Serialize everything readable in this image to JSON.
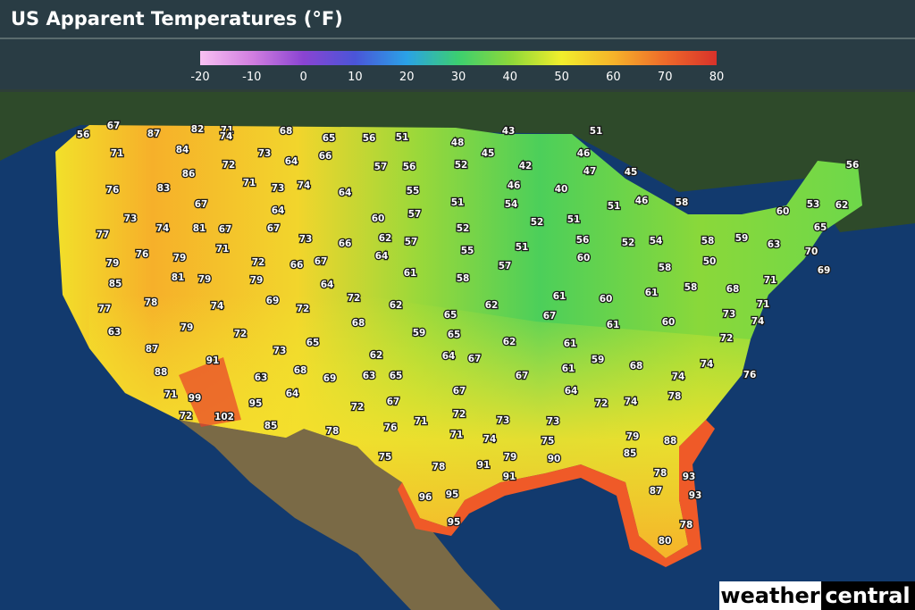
{
  "header": {
    "title": "US Apparent Temperatures (°F)"
  },
  "colorbar": {
    "ticks": [
      -20,
      -10,
      0,
      10,
      20,
      30,
      40,
      50,
      60,
      70,
      80
    ],
    "colors": [
      "#f8c0f2",
      "#d27fe0",
      "#8a44d2",
      "#4a55d8",
      "#2aa2e6",
      "#3ccf70",
      "#8cd83a",
      "#f2ee2c",
      "#f6b32a",
      "#ee6a2a",
      "#d8322a"
    ]
  },
  "map": {
    "temperatures": [
      56,
      67,
      87,
      82,
      71,
      68,
      65,
      56,
      51,
      48,
      43,
      51,
      71,
      84,
      74,
      73,
      64,
      66,
      45,
      46,
      42,
      47,
      45,
      56,
      86,
      72,
      57,
      56,
      52,
      76,
      83,
      71,
      73,
      74,
      64,
      55,
      46,
      40,
      46,
      58,
      67,
      51,
      54,
      51,
      60,
      53,
      62,
      73,
      74,
      81,
      67,
      64,
      60,
      57,
      52,
      51,
      77,
      67,
      73,
      66,
      62,
      57,
      52,
      56,
      52,
      54,
      58,
      59,
      63,
      65,
      76,
      79,
      71,
      72,
      66,
      67,
      64,
      55,
      51,
      60,
      58,
      50,
      70,
      79,
      85,
      81,
      79,
      79,
      64,
      61,
      57,
      58,
      71,
      69,
      78,
      74,
      69,
      72,
      72,
      62,
      61,
      60,
      61,
      58,
      68,
      77,
      68,
      65,
      62,
      67,
      61,
      60,
      73,
      71,
      74,
      63,
      79,
      72,
      59,
      65,
      62,
      61,
      72,
      87,
      73,
      65,
      62,
      64,
      67,
      59,
      68,
      74,
      91,
      88,
      63,
      68,
      69,
      63,
      65,
      67,
      61,
      74,
      76,
      71,
      99,
      64,
      67,
      64,
      78,
      72,
      102,
      95,
      72,
      67,
      72,
      74,
      72,
      73,
      73,
      85,
      78,
      76,
      71,
      71,
      74,
      79,
      75,
      88,
      75,
      78,
      91,
      79,
      90,
      85,
      78,
      93,
      91,
      96,
      95,
      87,
      93,
      95,
      78,
      80
    ]
  },
  "logo": {
    "left": "weather",
    "right": "central"
  }
}
